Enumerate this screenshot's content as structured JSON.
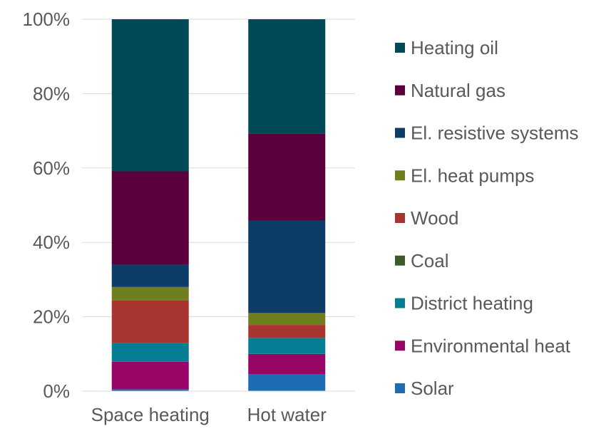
{
  "chart_data": {
    "type": "bar",
    "stacked": true,
    "percent_stacked": true,
    "title": "",
    "xlabel": "",
    "ylabel": "",
    "ylim": [
      0,
      100
    ],
    "y_ticks": [
      "0%",
      "20%",
      "40%",
      "60%",
      "80%",
      "100%"
    ],
    "grid": true,
    "legend_position": "right",
    "categories": [
      "Space heating",
      "Hot water"
    ],
    "series": [
      {
        "name": "Solar",
        "color": "#1f6cb5",
        "values": [
          0.5,
          4.6
        ]
      },
      {
        "name": "Environmental heat",
        "color": "#970566",
        "values": [
          7.4,
          5.4
        ]
      },
      {
        "name": "District heating",
        "color": "#077d94",
        "values": [
          5.0,
          4.3
        ]
      },
      {
        "name": "Coal",
        "color": "#3e5a2a",
        "values": [
          0.0,
          0.0
        ]
      },
      {
        "name": "Wood",
        "color": "#a93530",
        "values": [
          11.5,
          3.5
        ]
      },
      {
        "name": "El. heat pumps",
        "color": "#6f7e1e",
        "values": [
          3.6,
          3.2
        ]
      },
      {
        "name": "El. resistive systems",
        "color": "#0d3c66",
        "values": [
          6.1,
          24.8
        ]
      },
      {
        "name": "Natural gas",
        "color": "#5a003c",
        "values": [
          25.0,
          23.5
        ]
      },
      {
        "name": "Heating oil",
        "color": "#004957",
        "values": [
          40.9,
          30.7
        ]
      }
    ]
  }
}
